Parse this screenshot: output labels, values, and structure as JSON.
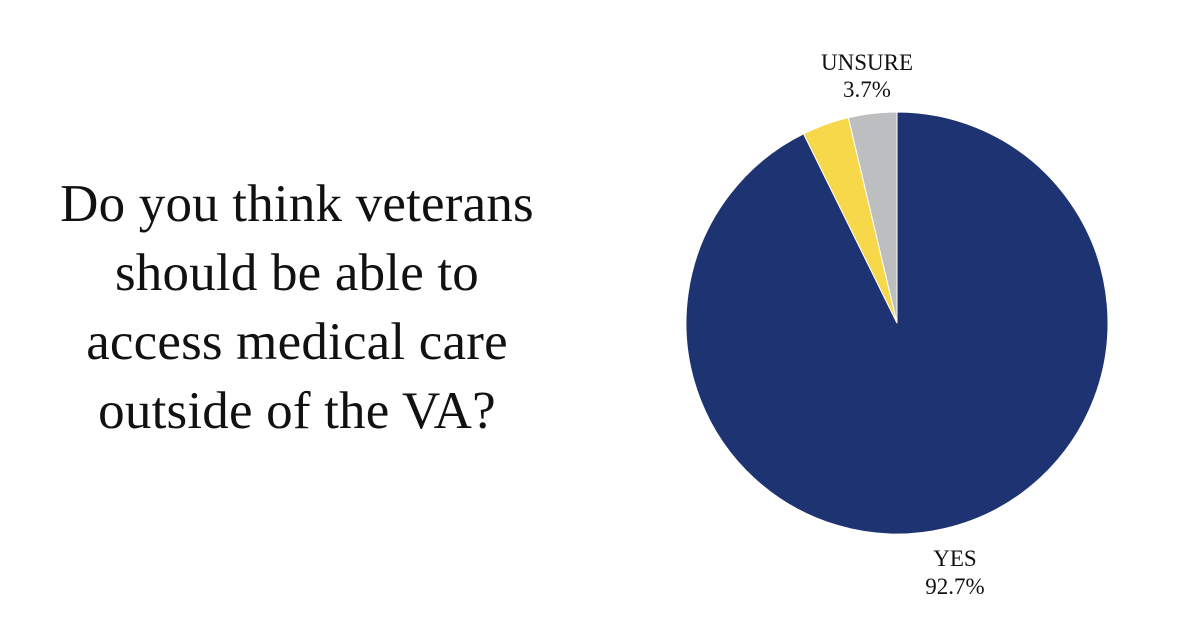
{
  "question": {
    "lines": [
      "Do you think veterans",
      "should be able to",
      "access medical care",
      "outside of the VA?"
    ]
  },
  "chart_data": {
    "type": "pie",
    "title": "",
    "start_angle_deg": 0,
    "direction": "clockwise",
    "slices": [
      {
        "name": "YES",
        "value": 92.7,
        "display": "92.7%",
        "color": "#1E3371",
        "labeled": true
      },
      {
        "name": "",
        "value": 3.6,
        "display": "",
        "color": "#F7D84A",
        "labeled": false
      },
      {
        "name": "UNSURE",
        "value": 3.7,
        "display": "3.7%",
        "color": "#BDBEC0",
        "labeled": true
      }
    ],
    "grid": false,
    "legend": "none"
  }
}
